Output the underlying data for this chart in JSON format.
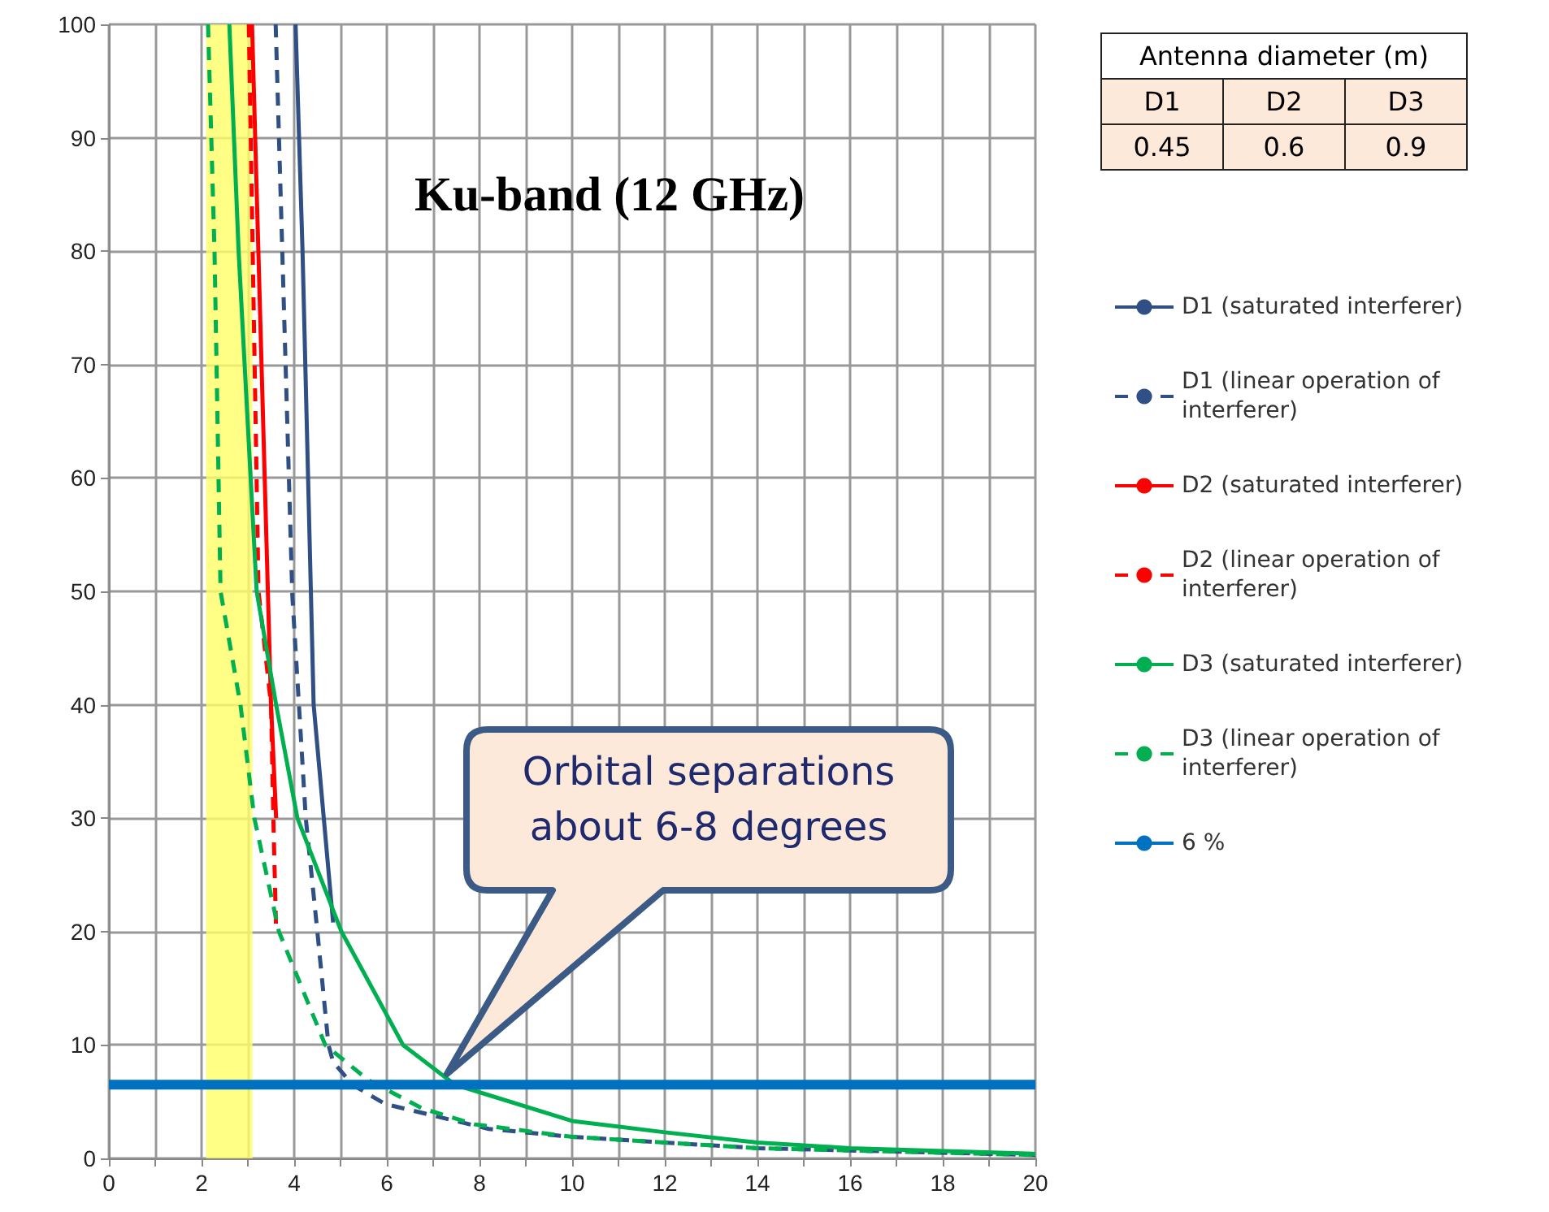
{
  "chart_data": {
    "type": "line",
    "title": "Ku-band (12 GHz)",
    "annotations": [
      "Orbital separations about 6-8 degrees",
      "Antenna diameter (m)",
      "D1",
      "D2",
      "D3",
      "0.45",
      "0.6",
      "0.9"
    ],
    "xlim": [
      0,
      20
    ],
    "ylim": [
      0,
      100
    ],
    "xticks": [
      0,
      {
        "value": 1,
        "label": null
      },
      2,
      {
        "value": 3,
        "label": null
      },
      4,
      {
        "value": 5,
        "label": null
      },
      6,
      {
        "value": 7,
        "label": null
      },
      8,
      {
        "value": 9,
        "label": null
      },
      10,
      {
        "value": 11,
        "label": null
      },
      12,
      {
        "value": 13,
        "label": null
      },
      14,
      {
        "value": 15,
        "label": null
      },
      16,
      {
        "value": 17,
        "label": null
      },
      18,
      {
        "value": 19,
        "label": null
      },
      20
    ],
    "yticks": [
      0,
      10,
      20,
      30,
      40,
      50,
      60,
      70,
      80,
      90,
      100
    ],
    "grid": true,
    "legend": "right",
    "marker": "none",
    "series": [
      {
        "name": "D1 (saturated interferer)",
        "color": "#2f4f85",
        "line_style": "solid",
        "x": [
          4.03,
          4.18,
          4.42,
          4.84
        ],
        "values": [
          100,
          80,
          40,
          20.8
        ]
      },
      {
        "name": "D1 (linear operation of interferer)",
        "color": "#2f4f85",
        "line_style": "dashed",
        "x": [
          3.6,
          3.96,
          4.25,
          4.5,
          4.74,
          4.84,
          5.26,
          5.96,
          8.2,
          10,
          14,
          20
        ],
        "values": [
          100,
          49.6,
          30,
          20,
          10,
          8.5,
          6.5,
          4.8,
          2.6,
          1.9,
          0.9,
          0.3
        ]
      },
      {
        "name": "D2 (saturated interferer)",
        "color": "#ff0000",
        "line_style": "solid",
        "x": [
          3.09,
          3.5,
          3.61
        ],
        "values": [
          100,
          40,
          30
        ]
      },
      {
        "name": "D2 (linear operation of interferer)",
        "color": "#ff0000",
        "line_style": "dashed",
        "x": [
          3.02,
          3.23,
          3.5,
          3.55,
          3.61
        ],
        "values": [
          100,
          50,
          40,
          30,
          20
        ]
      },
      {
        "name": "D3 (saturated interferer)",
        "color": "#00b050",
        "line_style": "solid",
        "x": [
          2.6,
          2.8,
          3.19,
          3.61,
          4.07,
          5.02,
          6.35,
          7.47,
          10,
          12,
          14,
          16,
          20
        ],
        "values": [
          100,
          80,
          50,
          40,
          30,
          20,
          10,
          6.5,
          3.3,
          2.3,
          1.4,
          0.9,
          0.4
        ]
      },
      {
        "name": "D3 (linear operation of interferer)",
        "color": "#00b050",
        "line_style": "dashed",
        "x": [
          2.14,
          2.28,
          2.41,
          2.84,
          3.14,
          3.67,
          4.67,
          5.6,
          6.77,
          7.9,
          10,
          14,
          20
        ],
        "values": [
          100,
          80,
          50,
          40,
          30,
          20,
          10,
          6.9,
          4.4,
          3,
          1.9,
          0.9,
          0.3
        ]
      }
    ],
    "ref_lines": [
      {
        "axis": "y",
        "value": 6.5,
        "label": "6 %",
        "color": "#0070c0"
      }
    ],
    "bands": [
      {
        "axis": "x",
        "from": 2.1,
        "to": 3.1,
        "color": "#ffff66"
      }
    ]
  }
}
